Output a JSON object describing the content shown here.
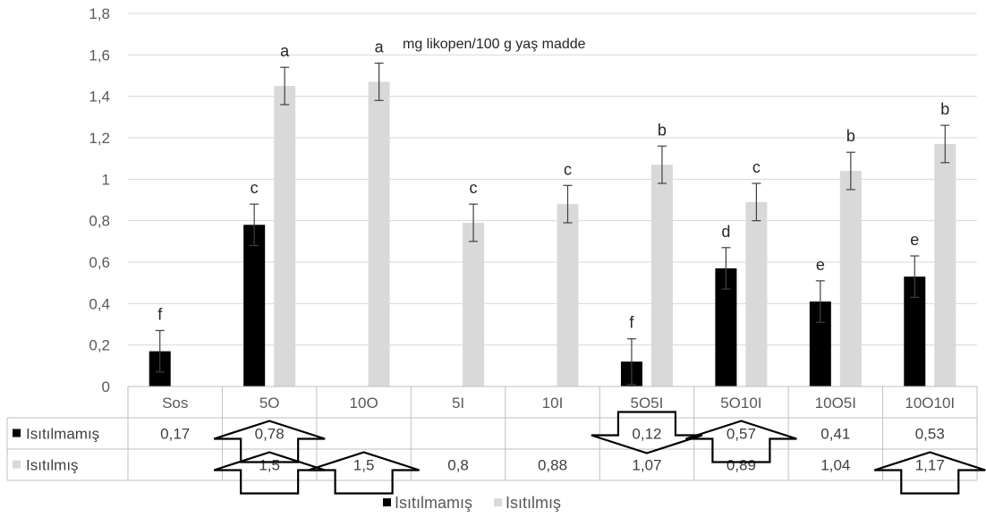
{
  "chart_data": {
    "type": "bar",
    "title": "mg likopen/100 g yaş madde",
    "categories": [
      "Sos",
      "5O",
      "10O",
      "5I",
      "10I",
      "5O5I",
      "5O10I",
      "10O5I",
      "10O10I"
    ],
    "ylim": [
      0,
      1.8
    ],
    "yticks": [
      "0",
      "0,2",
      "0,4",
      "0,6",
      "0,8",
      "1",
      "1,2",
      "1,4",
      "1,6",
      "1,8"
    ],
    "grid": true,
    "legend_position": "bottom",
    "series": [
      {
        "name": "Isıtılmamış",
        "color": "#000000",
        "values": [
          0.17,
          0.78,
          null,
          null,
          null,
          0.12,
          0.57,
          0.41,
          0.53
        ],
        "errors": [
          0.1,
          0.1,
          null,
          null,
          null,
          0.11,
          0.1,
          0.1,
          0.1
        ],
        "letters": [
          "f",
          "c",
          "",
          "",
          "",
          "f",
          "d",
          "e",
          "e"
        ],
        "table_values": [
          "0,17",
          "0,78",
          "",
          "",
          "",
          "0,12",
          "0,57",
          "0,41",
          "0,53"
        ]
      },
      {
        "name": "Isıtılmış",
        "color": "#d9d9d9",
        "values": [
          null,
          1.45,
          1.47,
          0.79,
          0.88,
          1.07,
          0.89,
          1.04,
          1.17
        ],
        "errors": [
          null,
          0.09,
          0.09,
          0.09,
          0.09,
          0.09,
          0.09,
          0.09,
          0.09
        ],
        "letters": [
          "",
          "a",
          "a",
          "c",
          "c",
          "b",
          "c",
          "b",
          "b"
        ],
        "table_values": [
          "",
          "1,5",
          "1,5",
          "0,8",
          "0,88",
          "1,07",
          "0,89",
          "1,04",
          "1,17"
        ]
      }
    ],
    "annotations": {
      "arrows": [
        {
          "row": 0,
          "category": 1,
          "direction": "up"
        },
        {
          "row": 0,
          "category": 5,
          "direction": "down"
        },
        {
          "row": 0,
          "category": 6,
          "direction": "up"
        },
        {
          "row": 1,
          "category": 1,
          "direction": "up"
        },
        {
          "row": 1,
          "category": 2,
          "direction": "up"
        },
        {
          "row": 1,
          "category": 8,
          "direction": "up"
        }
      ]
    }
  }
}
